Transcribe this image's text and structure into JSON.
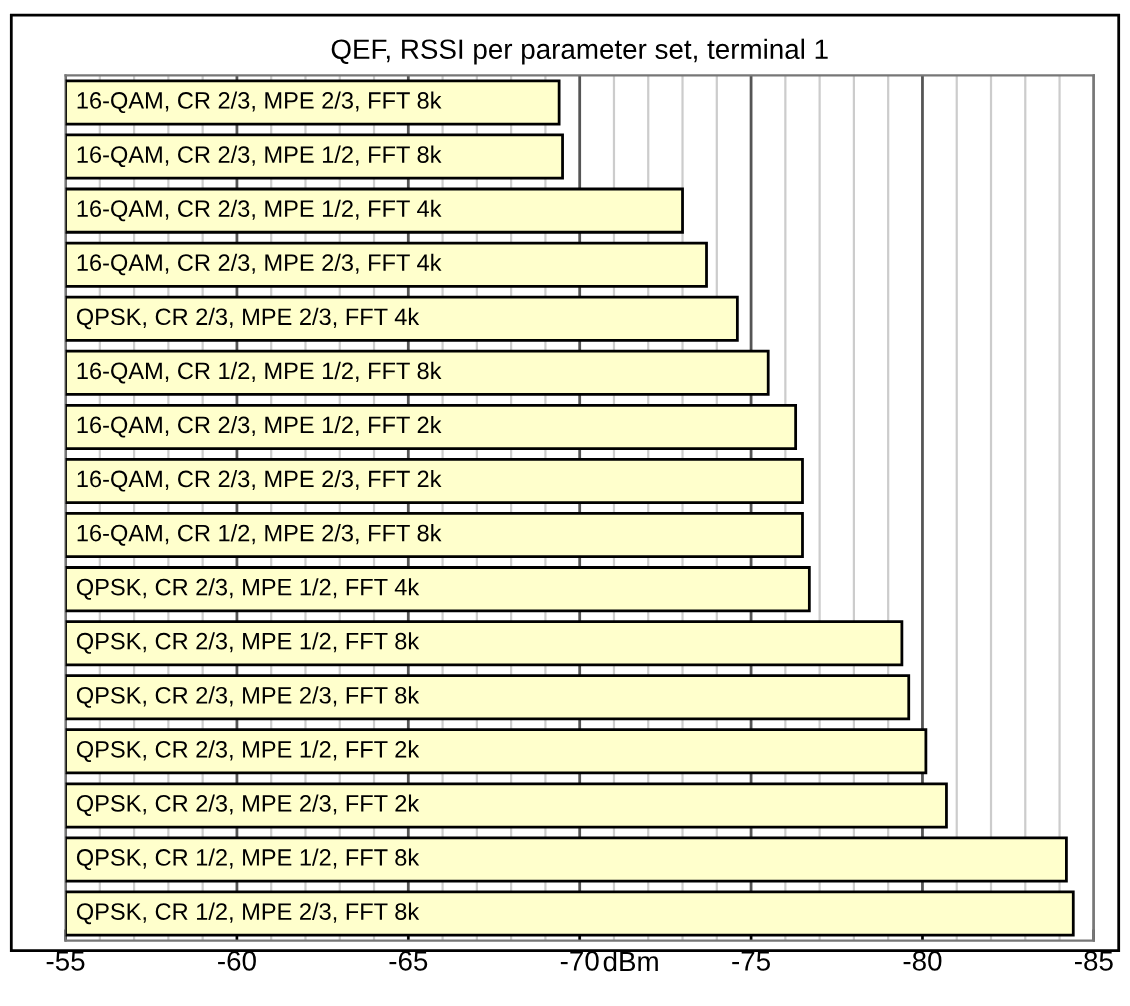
{
  "chart_data": {
    "type": "bar",
    "orientation": "horizontal",
    "title": "QEF, RSSI per parameter set, terminal 1",
    "xlabel": "dBm",
    "categories": [
      "16-QAM, CR 2/3, MPE 2/3, FFT 8k",
      "16-QAM, CR 2/3, MPE 1/2, FFT 8k",
      "16-QAM, CR 2/3, MPE 1/2, FFT 4k",
      "16-QAM, CR 2/3, MPE 2/3, FFT 4k",
      "QPSK, CR 2/3, MPE 2/3, FFT 4k",
      "16-QAM, CR 1/2, MPE 1/2, FFT 8k",
      "16-QAM, CR 2/3, MPE 1/2, FFT 2k",
      "16-QAM, CR 2/3, MPE 2/3, FFT 2k",
      "16-QAM, CR 1/2, MPE 2/3, FFT 8k",
      "QPSK, CR 2/3, MPE 1/2, FFT 4k",
      "QPSK, CR 2/3, MPE 1/2, FFT 8k",
      "QPSK, CR 2/3, MPE 2/3, FFT 8k",
      "QPSK, CR 2/3, MPE 1/2, FFT 2k",
      "QPSK, CR 2/3, MPE 2/3, FFT 2k",
      "QPSK, CR 1/2, MPE 1/2, FFT 8k",
      "QPSK, CR 1/2, MPE 2/3, FFT 8k"
    ],
    "values": [
      -69.4,
      -69.5,
      -73.0,
      -73.7,
      -74.6,
      -75.5,
      -76.3,
      -76.5,
      -76.5,
      -76.7,
      -79.4,
      -79.6,
      -80.1,
      -80.7,
      -84.2,
      -84.4
    ],
    "color": "#ffffcc",
    "xlim": [
      -55,
      -85
    ],
    "xticks": [
      -55,
      -60,
      -65,
      -70,
      -75,
      -80,
      -85
    ],
    "grid": "x",
    "legend": false
  }
}
